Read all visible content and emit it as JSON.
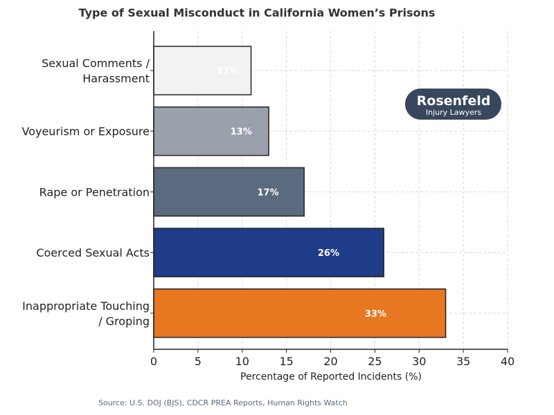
{
  "chart_data": {
    "type": "bar",
    "orientation": "horizontal",
    "title": "Type of Sexual Misconduct in California Women’s Prisons",
    "xlabel": "Percentage of Reported Incidents (%)",
    "ylabel": "",
    "xlim": [
      0,
      40
    ],
    "xticks": [
      0,
      5,
      10,
      15,
      20,
      25,
      30,
      35,
      40
    ],
    "grid": true,
    "categories": [
      [
        "Sexual Comments /",
        "Harassment"
      ],
      [
        "Voyeurism or Exposure"
      ],
      [
        "Rape or Penetration"
      ],
      [
        "Coerced Sexual Acts"
      ],
      [
        "Inappropriate Touching",
        "/ Groping"
      ]
    ],
    "values": [
      11,
      13,
      17,
      26,
      33
    ],
    "data_labels": [
      "11%",
      "13%",
      "17%",
      "26%",
      "33%"
    ],
    "colors": [
      "#f2f2f2",
      "#9aa1ad",
      "#5b6b7f",
      "#1f3c88",
      "#e87722"
    ]
  },
  "logo": {
    "line1": "Rosenfeld",
    "line2": "Injury Lawyers",
    "color": "#38475e"
  },
  "source": "Source: U.S. DOJ (BJS), CDCR PREA Reports, Human Rights Watch"
}
